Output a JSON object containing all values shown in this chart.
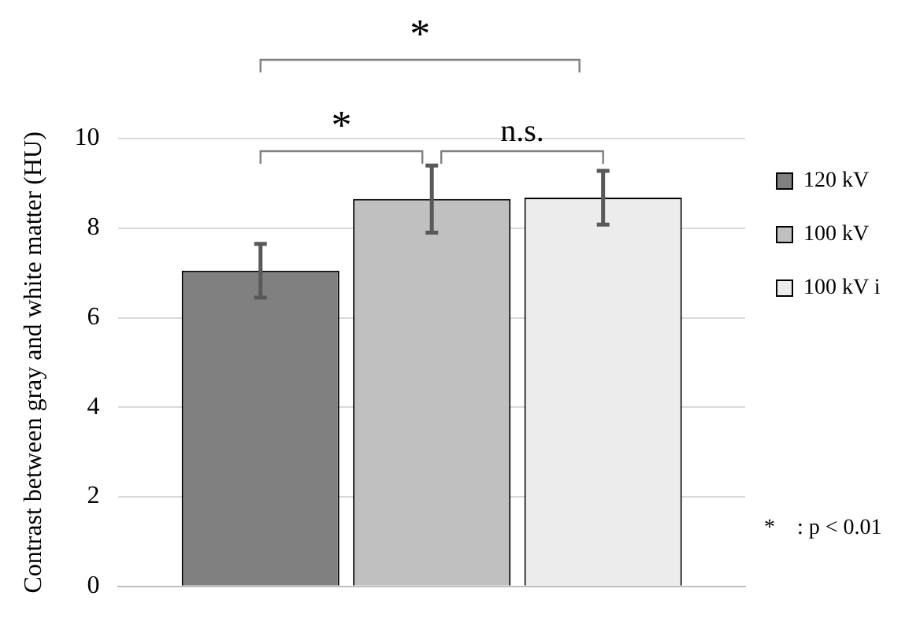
{
  "chart_data": {
    "type": "bar",
    "ylabel": "Contrast between gray and white matter (HU)",
    "categories": [
      null
    ],
    "series": [
      {
        "name": "120 kV",
        "color": "#808080",
        "values": [
          7.05
        ],
        "errors": [
          0.6
        ]
      },
      {
        "name": "100 kV",
        "color": "#c0c0c0",
        "values": [
          8.65
        ],
        "errors": [
          0.75
        ]
      },
      {
        "name": "100 kV i",
        "color": "#ececec",
        "values": [
          8.68
        ],
        "errors": [
          0.6
        ]
      }
    ],
    "ylim": [
      0,
      10
    ],
    "yticks": [
      0,
      2,
      4,
      6,
      8,
      10
    ],
    "grid": "y",
    "legend": "top right",
    "annotations": [
      "*",
      "*",
      "n.s.",
      "*    : p < 0.01"
    ]
  }
}
